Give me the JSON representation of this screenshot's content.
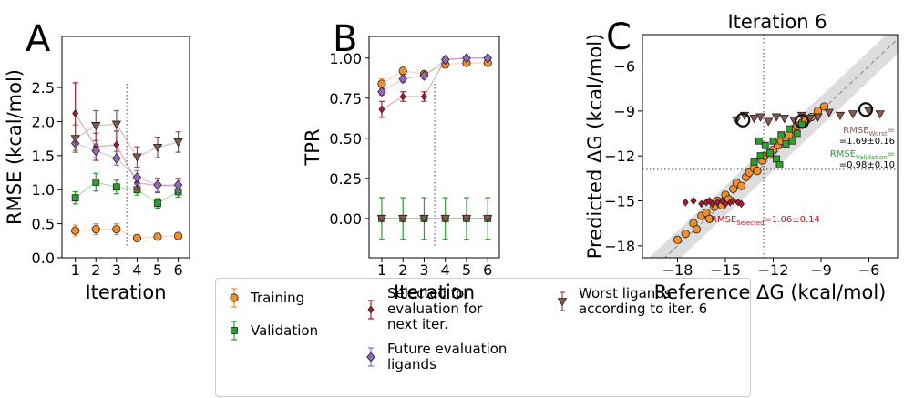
{
  "chart_data": [
    {
      "type": "line",
      "panel_label": "A",
      "xlabel": "Iteration",
      "ylabel": "RMSE (kcal/mol)",
      "x": [
        1,
        2,
        3,
        4,
        5,
        6
      ],
      "xlim": [
        0.35,
        6.55
      ],
      "xticks": [
        1,
        2,
        3,
        4,
        5,
        6
      ],
      "ylim": [
        0,
        3.25
      ],
      "yticks": [
        {
          "value": 0,
          "label": "0.0"
        },
        0.5,
        {
          "value": 1,
          "label": "1.0"
        },
        1.5,
        {
          "value": 2,
          "label": "2.0"
        },
        2.5
      ],
      "vline": 3.5,
      "series": [
        {
          "name": "Training",
          "color": "#f28e2b",
          "marker": "circle",
          "values": [
            0.4,
            0.42,
            0.42,
            0.29,
            0.31,
            0.32
          ],
          "errors": [
            0.08,
            0.08,
            0.08,
            0.05,
            0.05,
            0.05
          ]
        },
        {
          "name": "Validation",
          "color": "#2ca02c",
          "marker": "square",
          "values": [
            0.88,
            1.11,
            1.04,
            1.0,
            0.8,
            0.97
          ],
          "errors": [
            0.09,
            0.13,
            0.1,
            0.08,
            0.07,
            0.08
          ]
        },
        {
          "name": "Selected for evaluation for next iter.",
          "color": "#b2182b",
          "marker": "small-diamond",
          "values": [
            2.12,
            1.63,
            1.66,
            1.1,
            1.06,
            1.06
          ],
          "errors": [
            0.45,
            0.2,
            0.2,
            0.1,
            0.1,
            0.1
          ]
        },
        {
          "name": "Future evaluation ligands",
          "color": "#9467bd",
          "marker": "diamond",
          "values": [
            1.68,
            1.57,
            1.46,
            1.18,
            1.07,
            1.07
          ],
          "errors": [
            0.1,
            0.1,
            0.1,
            0.1,
            0.1,
            0.1
          ]
        },
        {
          "name": "Worst ligands according to iter. 6",
          "color": "#8c564b",
          "marker": "triangle-down",
          "values": [
            1.75,
            1.94,
            1.96,
            1.48,
            1.62,
            1.7
          ],
          "errors": [
            0.2,
            0.22,
            0.2,
            0.15,
            0.15,
            0.15
          ]
        }
      ]
    },
    {
      "type": "line",
      "panel_label": "B",
      "xlabel": "Iteration",
      "ylabel": "TPR",
      "x": [
        1,
        2,
        3,
        4,
        5,
        6
      ],
      "xlim": [
        0.4,
        6.55
      ],
      "xticks": [
        1,
        2,
        3,
        4,
        5,
        6
      ],
      "ylim": [
        -0.245,
        1.135
      ],
      "yticks": [
        {
          "value": 0,
          "label": "0.00"
        },
        0.25,
        {
          "value": 0.5,
          "label": "0.50"
        },
        0.75,
        {
          "value": 1,
          "label": "1.00"
        }
      ],
      "vline": 3.5,
      "series": [
        {
          "color": "#f28e2b",
          "marker": "circle",
          "values": [
            0.84,
            0.92,
            0.9,
            0.96,
            0.97,
            0.97
          ],
          "errors": [
            0.03,
            0.02,
            0.02,
            0.02,
            0.01,
            0.01
          ]
        },
        {
          "color": "#2ca02c",
          "marker": "square",
          "values": [
            0,
            0,
            0,
            0,
            0,
            0
          ],
          "errors": [
            0.13,
            0.13,
            0.13,
            0.13,
            0.13,
            0.13
          ]
        },
        {
          "color": "#b2182b",
          "marker": "small-diamond",
          "values": [
            0.68,
            0.76,
            0.76,
            0.99,
            1.0,
            1.0
          ],
          "errors": [
            0.05,
            0.03,
            0.03,
            0.02,
            0.01,
            0.01
          ]
        },
        {
          "color": "#9467bd",
          "marker": "diamond",
          "values": [
            0.79,
            0.87,
            0.89,
            0.99,
            1.0,
            1.0
          ],
          "errors": [
            0.02,
            0.02,
            0.02,
            0.01,
            0.01,
            0.01
          ]
        },
        {
          "color": "#8c564b",
          "marker": "triangle-down",
          "values": [
            0,
            0,
            0,
            0,
            0,
            0
          ],
          "errors": [
            0.02,
            0.02,
            0.02,
            0.02,
            0.02,
            0.02
          ]
        }
      ]
    },
    {
      "type": "scatter",
      "panel_label": "C",
      "title": "Iteration 6",
      "xlabel": "Reference ΔG (kcal/mol)",
      "ylabel": "Predicted ΔG (kcal/mol)",
      "xlim": [
        -20.2,
        -4.2
      ],
      "ylim": [
        -18.8,
        -3.9
      ],
      "xticks": [
        {
          "value": -18,
          "label": "−18"
        },
        {
          "value": -15,
          "label": "−15"
        },
        {
          "value": -12,
          "label": "−12"
        },
        {
          "value": -9,
          "label": "−9"
        },
        {
          "value": -6,
          "label": "−6"
        }
      ],
      "yticks": [
        {
          "value": -18,
          "label": "−18"
        },
        {
          "value": -15,
          "label": "−15"
        },
        {
          "value": -12,
          "label": "−12"
        },
        {
          "value": -9,
          "label": "−9"
        },
        {
          "value": -6,
          "label": "−6"
        }
      ],
      "vline": -12.6,
      "hline": -12.9,
      "diagonal_band": 1,
      "series": [
        {
          "color": "#f28e2b",
          "marker": "circle",
          "x": [
            -18,
            -17.5,
            -17,
            -16.8,
            -16.5,
            -16.2,
            -16,
            -15.7,
            -15.5,
            -15.2,
            -15,
            -14.8,
            -14.5,
            -14.3,
            -14,
            -13.7,
            -13.5,
            -13.2,
            -13,
            -12.7,
            -12.5,
            -12.2,
            -12,
            -11.7,
            -11.5,
            -11.2,
            -11,
            -10.7,
            -10.5,
            -10.2,
            -10,
            -9.6,
            -9.2,
            -8.8
          ],
          "values": [
            -17.6,
            -17.2,
            -16.5,
            -16.9,
            -16.0,
            -15.8,
            -16.2,
            -15.4,
            -15.0,
            -15.3,
            -14.6,
            -14.9,
            -14.2,
            -13.8,
            -14.0,
            -13.4,
            -13.1,
            -12.8,
            -13.0,
            -12.3,
            -12.0,
            -11.9,
            -11.6,
            -11.3,
            -11.0,
            -10.8,
            -10.6,
            -10.2,
            -10.0,
            -9.8,
            -9.6,
            -9.4,
            -9.0,
            -8.7
          ]
        },
        {
          "color": "#2ca02c",
          "marker": "square",
          "x": [
            -13.2,
            -12.8,
            -12.5,
            -12.2,
            -12,
            -11.8,
            -11.5,
            -11.2,
            -11,
            -10.8,
            -10.5,
            -10.2,
            -12.9,
            -11.6
          ],
          "values": [
            -12.4,
            -12.0,
            -11.3,
            -11.8,
            -11.0,
            -12.2,
            -10.6,
            -11.2,
            -10.2,
            -11.0,
            -10.5,
            -9.9,
            -11.0,
            -12.6
          ]
        },
        {
          "color": "#b2182b",
          "marker": "small-diamond",
          "x": [
            -17.5,
            -17,
            -16.5,
            -16.2,
            -16,
            -15.8,
            -15.5,
            -15.2,
            -15,
            -14.7,
            -14.5,
            -14.2,
            -14
          ],
          "values": [
            -15.1,
            -15.0,
            -15.2,
            -15.1,
            -15.0,
            -15.2,
            -15.1,
            -15.0,
            -15.2,
            -15.1,
            -15.0,
            -15.1,
            -15.2
          ]
        },
        {
          "color": "#8c564b",
          "marker": "triangle-down",
          "x": [
            -14.3,
            -13.8,
            -13.2,
            -12.8,
            -12.3,
            -11.8,
            -11.3,
            -10.7,
            -10.2,
            -9.7,
            -9.2,
            -8.5,
            -7.8,
            -7,
            -6,
            -5.3
          ],
          "values": [
            -9.6,
            -9.3,
            -9.5,
            -9.4,
            -9.7,
            -9.4,
            -9.5,
            -9.6,
            -9.3,
            -9.5,
            -9.4,
            -9.1,
            -9.3,
            -9.2,
            -9.0,
            -9.2
          ]
        },
        {
          "color": "#111111",
          "marker": "ring",
          "x": [
            -13.9,
            -10.2,
            -6.2
          ],
          "values": [
            -9.6,
            -9.7,
            -8.9
          ]
        }
      ],
      "annotations": [
        {
          "text": "RMSE",
          "sub": "Worst",
          "suffix": "=",
          "line2": "=1.69±0.16",
          "color": "#8c564b"
        },
        {
          "text": "RMSE",
          "sub": "Validation",
          "suffix": "=",
          "line2": "=0.98±0.10",
          "color": "#2ca02c"
        },
        {
          "text": "RMSE",
          "sub": "Selected",
          "suffix": "=1.06±0.14",
          "color": "#c0141f"
        }
      ]
    }
  ]
}
